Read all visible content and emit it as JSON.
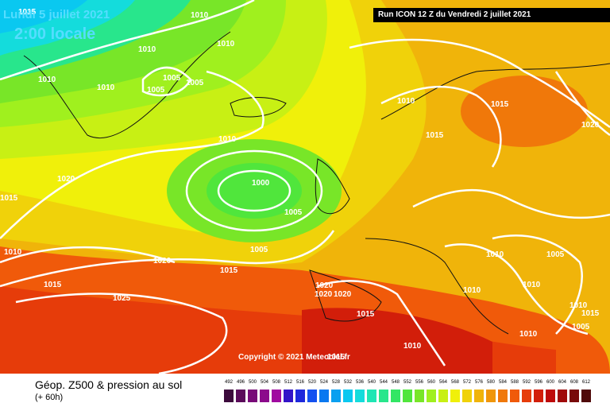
{
  "header": {
    "date": "Lundi 5 juillet 2021",
    "time": "2:00 locale",
    "run": "Run ICON 12 Z du Vendredi 2 juillet 2021"
  },
  "copyright": "Copyright © 2021 Meteociel.fr",
  "footer": {
    "title": "Géop. Z500 & pression au sol",
    "lead": "(+ 60h)"
  },
  "scale": {
    "labels": [
      "492",
      "496",
      "500",
      "504",
      "508",
      "512",
      "516",
      "520",
      "524",
      "528",
      "532",
      "536",
      "540",
      "544",
      "548",
      "552",
      "556",
      "560",
      "564",
      "568",
      "572",
      "576",
      "580",
      "584",
      "588",
      "592",
      "596",
      "600",
      "604",
      "608",
      "612"
    ],
    "colors": [
      "#3c0a3c",
      "#5a0a5a",
      "#780a78",
      "#8c0a8c",
      "#a00aa0",
      "#3214c8",
      "#1e28dc",
      "#1450f0",
      "#0a78f0",
      "#0aa0f0",
      "#0ac8f0",
      "#14dcdc",
      "#1ee6b4",
      "#28e68c",
      "#32e664",
      "#50e63c",
      "#78e628",
      "#a0f01e",
      "#c8f014",
      "#f0f00a",
      "#f0d20a",
      "#f0b40a",
      "#f0960a",
      "#f0780a",
      "#f05a0a",
      "#e63c0a",
      "#d21e0a",
      "#be0a0a",
      "#a00a0a",
      "#780a0a",
      "#500a0a"
    ]
  },
  "isobars": [
    {
      "value": "1010"
    },
    {
      "value": "1010"
    },
    {
      "value": "1010"
    },
    {
      "value": "1010"
    },
    {
      "value": "1010"
    },
    {
      "value": "1005"
    },
    {
      "value": "1005"
    },
    {
      "value": "1005"
    },
    {
      "value": "1010"
    },
    {
      "value": "1000"
    },
    {
      "value": "1005"
    },
    {
      "value": "1005"
    },
    {
      "value": "1020"
    },
    {
      "value": "1015"
    },
    {
      "value": "1020"
    },
    {
      "value": "1015"
    },
    {
      "value": "1015"
    },
    {
      "value": "1025"
    },
    {
      "value": "1010"
    },
    {
      "value": "1015"
    },
    {
      "value": "1015"
    },
    {
      "value": "1020"
    },
    {
      "value": "1010"
    },
    {
      "value": "1010"
    },
    {
      "value": "1005"
    },
    {
      "value": "1010"
    },
    {
      "value": "1020"
    },
    {
      "value": "1020"
    },
    {
      "value": "1015"
    },
    {
      "value": "1010"
    },
    {
      "value": "1010"
    },
    {
      "value": "1010"
    },
    {
      "value": "1005"
    },
    {
      "value": "1010"
    },
    {
      "value": "1015"
    },
    {
      "value": "1015"
    },
    {
      "value": "1020"
    },
    {
      "value": "1015"
    }
  ]
}
